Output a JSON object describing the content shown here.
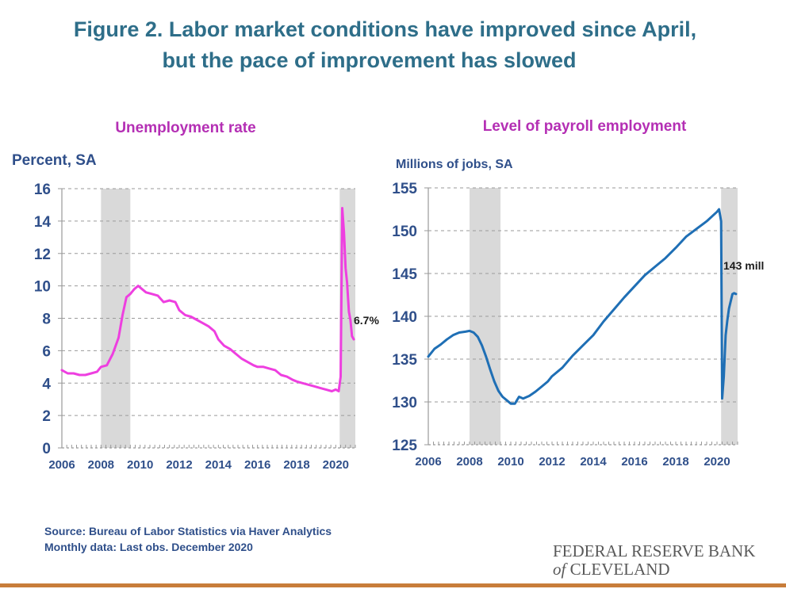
{
  "page": {
    "title_line1": "Figure 2. Labor market conditions have improved since April,",
    "title_line2": "but the pace of improvement has slowed",
    "source_line1": "Source: Bureau of Labor Statistics via Haver Analytics",
    "source_line2": "Monthly data: Last obs. December 2020",
    "logo_line1": "FEDERAL RESERVE BANK",
    "logo_of": "of",
    "logo_line2": "CLEVELAND",
    "colors": {
      "title": "#2e6e89",
      "rule": "#c87d3a",
      "recession": "#d9d9d9"
    }
  },
  "chart_data": [
    {
      "type": "line",
      "title": "Unemployment rate",
      "ylabel": "Percent, SA",
      "xlim": [
        2006,
        2021
      ],
      "ylim": [
        0,
        16
      ],
      "yticks": [
        0,
        2,
        4,
        6,
        8,
        10,
        12,
        14,
        16
      ],
      "xticks": [
        2006,
        2008,
        2010,
        2012,
        2014,
        2016,
        2018,
        2020
      ],
      "grid": true,
      "color": "#ee3fe0",
      "title_color": "#b42fb4",
      "recessions": [
        [
          2008.0,
          2009.5
        ],
        [
          2020.2,
          2021.0
        ]
      ],
      "end_label": "6.7%",
      "series": [
        {
          "x": [
            2006.0,
            2006.3,
            2006.6,
            2006.9,
            2007.2,
            2007.5,
            2007.8,
            2008.0,
            2008.3,
            2008.6,
            2008.9,
            2009.1,
            2009.3,
            2009.5,
            2009.7,
            2009.9,
            2010.1,
            2010.3,
            2010.6,
            2010.9,
            2011.2,
            2011.5,
            2011.8,
            2012.0,
            2012.3,
            2012.6,
            2012.9,
            2013.2,
            2013.5,
            2013.8,
            2014.0,
            2014.3,
            2014.6,
            2014.9,
            2015.2,
            2015.5,
            2015.8,
            2016.0,
            2016.3,
            2016.6,
            2016.9,
            2017.2,
            2017.5,
            2017.8,
            2018.0,
            2018.3,
            2018.6,
            2018.9,
            2019.2,
            2019.5,
            2019.8,
            2020.0,
            2020.15,
            2020.25,
            2020.33,
            2020.42,
            2020.5,
            2020.58,
            2020.67,
            2020.75,
            2020.83,
            2020.92
          ],
          "y": [
            4.8,
            4.6,
            4.6,
            4.5,
            4.5,
            4.6,
            4.7,
            5.0,
            5.1,
            5.8,
            6.8,
            8.2,
            9.3,
            9.5,
            9.8,
            10.0,
            9.8,
            9.6,
            9.5,
            9.4,
            9.0,
            9.1,
            9.0,
            8.5,
            8.2,
            8.1,
            7.9,
            7.7,
            7.5,
            7.2,
            6.7,
            6.3,
            6.1,
            5.8,
            5.5,
            5.3,
            5.1,
            5.0,
            5.0,
            4.9,
            4.8,
            4.5,
            4.4,
            4.2,
            4.1,
            4.0,
            3.9,
            3.8,
            3.7,
            3.6,
            3.5,
            3.6,
            3.5,
            4.4,
            14.8,
            13.3,
            11.1,
            10.2,
            8.4,
            7.9,
            6.9,
            6.7
          ]
        }
      ]
    },
    {
      "type": "line",
      "title": "Level of payroll employment",
      "ylabel": "Millions of jobs, SA",
      "xlim": [
        2006,
        2021
      ],
      "ylim": [
        125,
        155
      ],
      "yticks": [
        125,
        130,
        135,
        140,
        145,
        150,
        155
      ],
      "xticks": [
        2006,
        2008,
        2010,
        2012,
        2014,
        2016,
        2018,
        2020
      ],
      "grid": true,
      "color": "#1f6fb5",
      "title_color": "#b42fb4",
      "recessions": [
        [
          2008.0,
          2009.5
        ],
        [
          2020.2,
          2021.0
        ]
      ],
      "end_label": "143 mill",
      "series": [
        {
          "x": [
            2006.0,
            2006.3,
            2006.6,
            2006.9,
            2007.2,
            2007.5,
            2007.8,
            2008.0,
            2008.2,
            2008.4,
            2008.6,
            2008.8,
            2009.0,
            2009.2,
            2009.4,
            2009.6,
            2009.8,
            2010.0,
            2010.2,
            2010.4,
            2010.6,
            2010.9,
            2011.2,
            2011.5,
            2011.8,
            2012.0,
            2012.5,
            2013.0,
            2013.5,
            2014.0,
            2014.5,
            2015.0,
            2015.5,
            2016.0,
            2016.5,
            2017.0,
            2017.5,
            2018.0,
            2018.5,
            2019.0,
            2019.5,
            2020.0,
            2020.1,
            2020.2,
            2020.25,
            2020.33,
            2020.42,
            2020.5,
            2020.58,
            2020.67,
            2020.75,
            2020.83,
            2020.92
          ],
          "y": [
            135.3,
            136.2,
            136.7,
            137.3,
            137.8,
            138.1,
            138.2,
            138.3,
            138.1,
            137.6,
            136.6,
            135.3,
            133.8,
            132.4,
            131.3,
            130.6,
            130.2,
            129.8,
            129.8,
            130.6,
            130.4,
            130.7,
            131.2,
            131.8,
            132.4,
            133.0,
            134.0,
            135.4,
            136.6,
            137.8,
            139.4,
            140.8,
            142.2,
            143.5,
            144.8,
            145.8,
            146.8,
            148.0,
            149.3,
            150.2,
            151.1,
            152.2,
            152.5,
            151.1,
            130.4,
            133.0,
            137.8,
            139.5,
            140.9,
            141.8,
            142.6,
            142.7,
            142.6
          ]
        }
      ]
    }
  ]
}
